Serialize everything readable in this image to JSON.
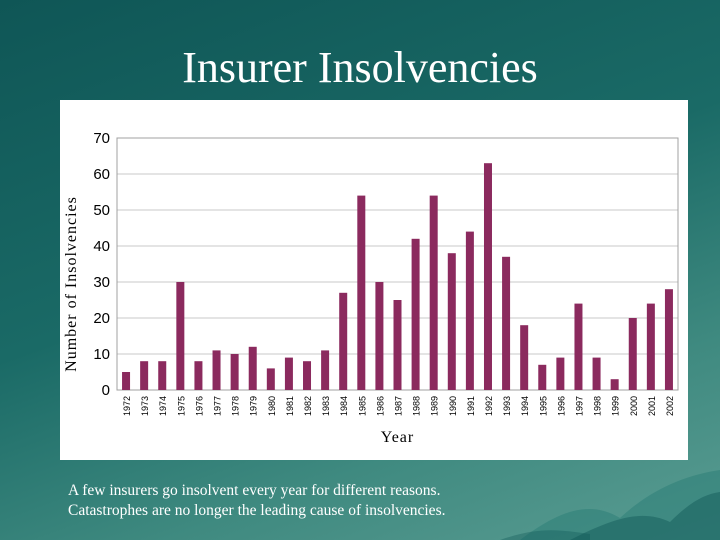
{
  "slide": {
    "title": "Insurer Insolvencies",
    "caption_lines": [
      "A few insurers go insolvent every year for different reasons.",
      "Catastrophes are no longer the leading cause of insolvencies."
    ],
    "colors": {
      "background": "#1a6a66",
      "bar": "#8b2a5e",
      "panel": "#ffffff"
    }
  },
  "chart_data": {
    "type": "bar",
    "title": "",
    "xlabel": "Year",
    "ylabel": "Number of Insolvencies",
    "ylim": [
      0,
      70
    ],
    "yticks": [
      0,
      10,
      20,
      30,
      40,
      50,
      60,
      70
    ],
    "grid": true,
    "categories": [
      "1972",
      "1973",
      "1974",
      "1975",
      "1976",
      "1977",
      "1978",
      "1979",
      "1980",
      "1981",
      "1982",
      "1983",
      "1984",
      "1985",
      "1986",
      "1987",
      "1988",
      "1989",
      "1990",
      "1991",
      "1992",
      "1993",
      "1994",
      "1995",
      "1996",
      "1997",
      "1998",
      "1999",
      "2000",
      "2001",
      "2002"
    ],
    "values": [
      5,
      8,
      8,
      30,
      8,
      11,
      10,
      12,
      6,
      9,
      8,
      11,
      27,
      54,
      30,
      25,
      42,
      54,
      38,
      44,
      63,
      37,
      18,
      7,
      9,
      24,
      9,
      3,
      20,
      24,
      28
    ]
  }
}
